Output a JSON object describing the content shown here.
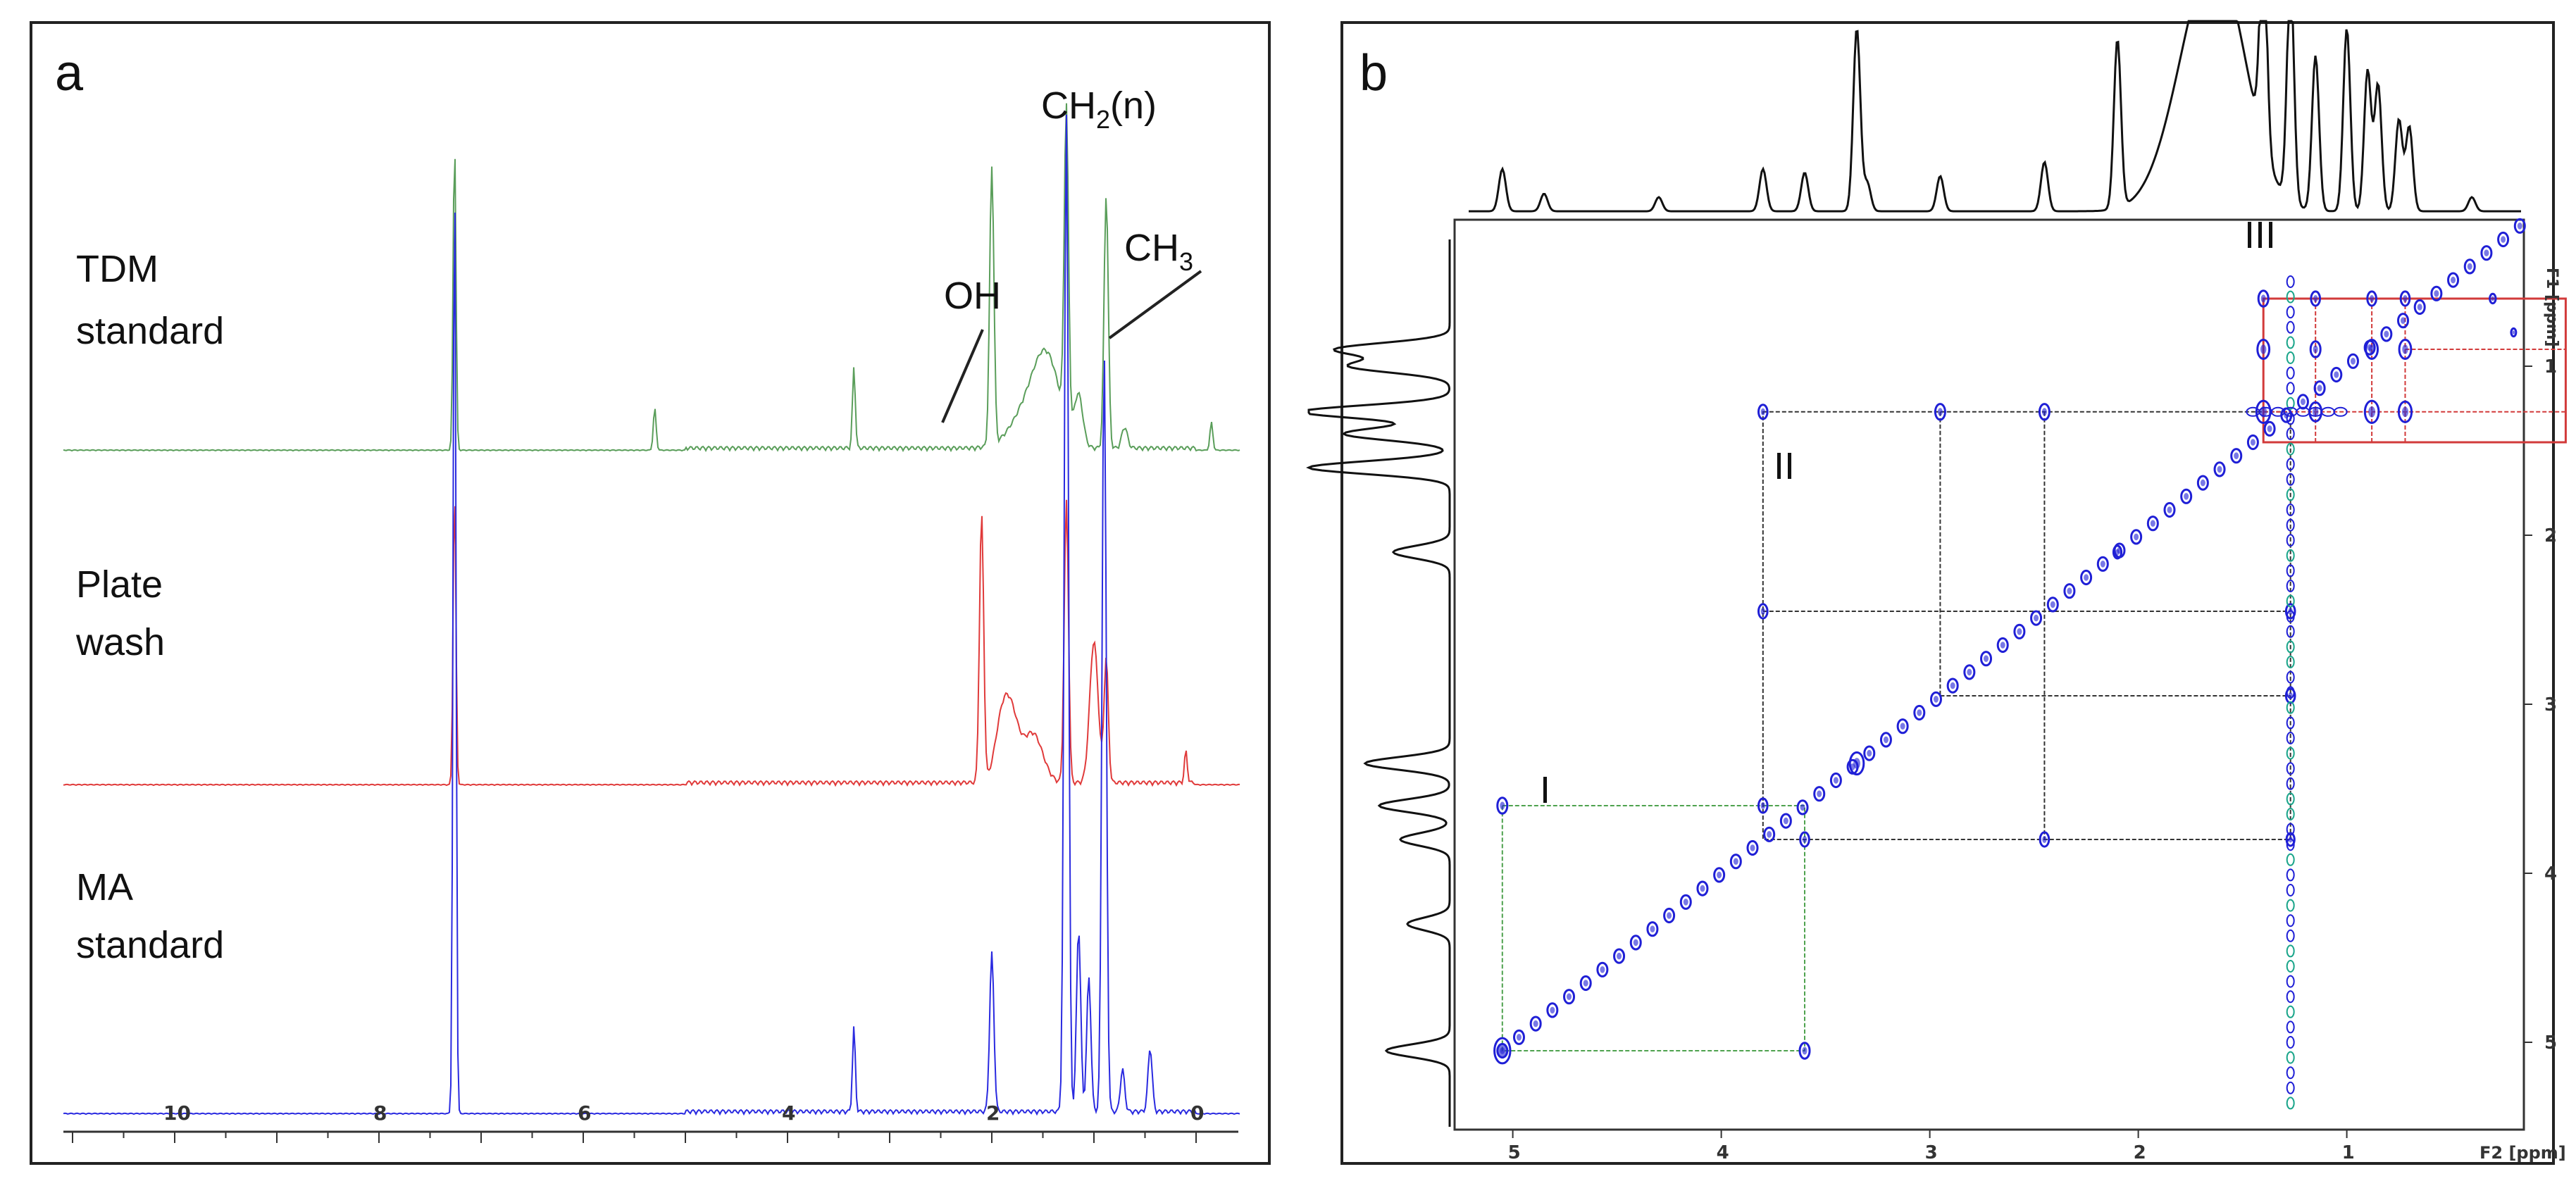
{
  "panel_a": {
    "letter": "a",
    "samples": [
      {
        "line1": "TDM",
        "line2": "standard",
        "color": "#5a9e5a"
      },
      {
        "line1": "Plate",
        "line2": "wash",
        "color": "#e03a3a"
      },
      {
        "line1": "MA",
        "line2": "standard",
        "color": "#2a2ae0"
      }
    ],
    "peak_labels": {
      "ch2_main": "CH",
      "ch2_sub": "2",
      "ch2_suffix": "(n)",
      "ch3_main": "CH",
      "ch3_sub": "3",
      "oh": "OH"
    },
    "axis_ticks": [
      "10",
      "8",
      "6",
      "4",
      "2",
      "0"
    ],
    "axis_values": [
      10,
      8,
      6,
      4,
      2,
      0
    ]
  },
  "panel_b": {
    "letter": "b",
    "region_labels": [
      "I",
      "II",
      "III"
    ],
    "x_ticks": [
      "5",
      "4",
      "3",
      "2",
      "1"
    ],
    "y_ticks": [
      "1",
      "2",
      "3",
      "4",
      "5"
    ],
    "tick_values": [
      1,
      2,
      3,
      4,
      5
    ],
    "x_unit": "F2 [ppm]",
    "y_unit": "F1 [ppm]",
    "colors": {
      "contour": "#1f1fd6",
      "contour_alt": "#1aa58a",
      "box_green": "#4ea24e",
      "box_red": "#d23a3a",
      "box_black": "#333333"
    }
  }
}
